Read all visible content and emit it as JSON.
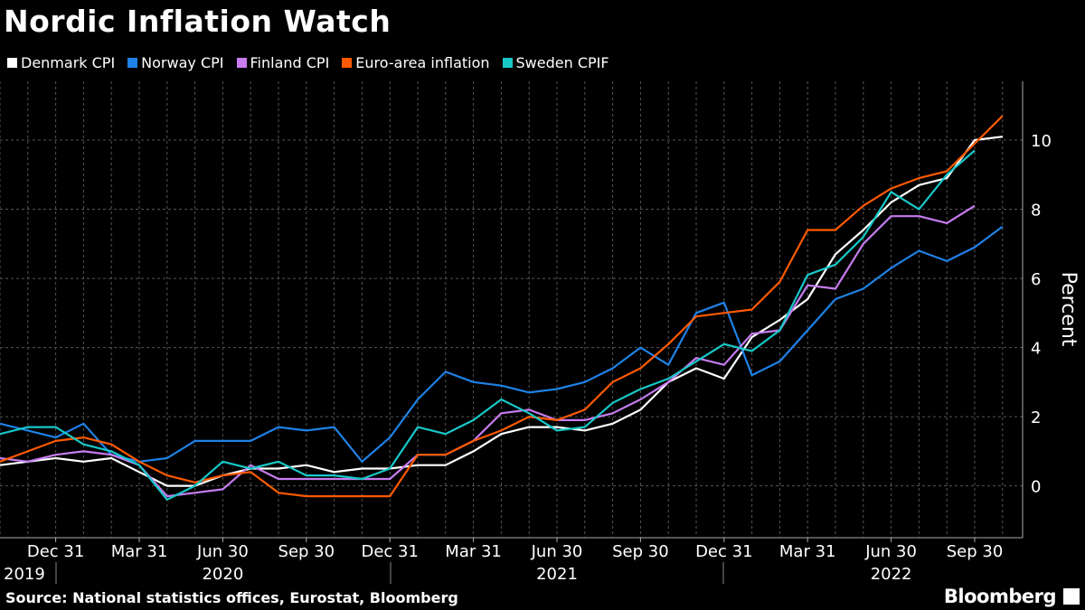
{
  "chart_data": {
    "type": "line",
    "title": "Nordic Inflation Watch",
    "ylabel": "Percent",
    "xlabel": "",
    "ylim": [
      -1.5,
      11.7
    ],
    "yticks": [
      0,
      2,
      4,
      6,
      8,
      10
    ],
    "grid": true,
    "legend_placement": "top-left",
    "x": [
      "2019-10",
      "2019-11",
      "2019-12",
      "2020-01",
      "2020-02",
      "2020-03",
      "2020-04",
      "2020-05",
      "2020-06",
      "2020-07",
      "2020-08",
      "2020-09",
      "2020-10",
      "2020-11",
      "2020-12",
      "2021-01",
      "2021-02",
      "2021-03",
      "2021-04",
      "2021-05",
      "2021-06",
      "2021-07",
      "2021-08",
      "2021-09",
      "2021-10",
      "2021-11",
      "2021-12",
      "2022-01",
      "2022-02",
      "2022-03",
      "2022-04",
      "2022-05",
      "2022-06",
      "2022-07",
      "2022-08",
      "2022-09",
      "2022-10"
    ],
    "xtick_labels": [
      {
        "label": "Dec 31",
        "month": 2
      },
      {
        "label": "Mar 31",
        "month": 5
      },
      {
        "label": "Jun 30",
        "month": 8
      },
      {
        "label": "Sep 30",
        "month": 11
      },
      {
        "label": "Dec 31",
        "month": 14
      },
      {
        "label": "Mar 31",
        "month": 17
      },
      {
        "label": "Jun 30",
        "month": 20
      },
      {
        "label": "Sep 30",
        "month": 23
      },
      {
        "label": "Dec 31",
        "month": 26
      },
      {
        "label": "Mar 31",
        "month": 29
      },
      {
        "label": "Jun 30",
        "month": 32
      },
      {
        "label": "Sep 30",
        "month": 35
      }
    ],
    "year_labels": [
      "2019",
      "2020",
      "2021",
      "2022"
    ],
    "series": [
      {
        "name": "Denmark CPI",
        "color": "#ffffff",
        "values": [
          0.6,
          0.7,
          0.8,
          0.7,
          0.8,
          0.4,
          0.0,
          0.0,
          0.3,
          0.5,
          0.5,
          0.6,
          0.4,
          0.5,
          0.5,
          0.6,
          0.6,
          1.0,
          1.5,
          1.7,
          1.7,
          1.6,
          1.8,
          2.2,
          3.0,
          3.4,
          3.1,
          4.3,
          4.8,
          5.4,
          6.7,
          7.4,
          8.2,
          8.7,
          8.9,
          10.0,
          10.1
        ]
      },
      {
        "name": "Norway CPI",
        "color": "#1f82e6",
        "values": [
          1.8,
          1.6,
          1.4,
          1.8,
          0.9,
          0.7,
          0.8,
          1.3,
          1.3,
          1.3,
          1.7,
          1.6,
          1.7,
          0.7,
          1.4,
          2.5,
          3.3,
          3.0,
          2.9,
          2.7,
          2.8,
          3.0,
          3.4,
          4.0,
          3.5,
          5.0,
          5.3,
          3.2,
          3.6,
          4.5,
          5.4,
          5.7,
          6.3,
          6.8,
          6.5,
          6.9,
          7.5
        ]
      },
      {
        "name": "Finland CPI",
        "color": "#c77cf0",
        "values": [
          0.8,
          0.7,
          0.9,
          1.0,
          0.9,
          0.6,
          -0.3,
          -0.2,
          -0.1,
          0.6,
          0.2,
          0.2,
          0.2,
          0.2,
          0.2,
          0.9,
          0.9,
          1.3,
          2.1,
          2.2,
          1.9,
          1.9,
          2.1,
          2.5,
          3.0,
          3.7,
          3.5,
          4.4,
          4.5,
          5.8,
          5.7,
          7.0,
          7.8,
          7.8,
          7.6,
          8.1,
          null
        ]
      },
      {
        "name": "Euro-area inflation",
        "color": "#ff5a00",
        "values": [
          0.7,
          1.0,
          1.3,
          1.4,
          1.2,
          0.7,
          0.3,
          0.1,
          0.3,
          0.4,
          -0.2,
          -0.3,
          -0.3,
          -0.3,
          -0.3,
          0.9,
          0.9,
          1.3,
          1.6,
          2.0,
          1.9,
          2.2,
          3.0,
          3.4,
          4.1,
          4.9,
          5.0,
          5.1,
          5.9,
          7.4,
          7.4,
          8.1,
          8.6,
          8.9,
          9.1,
          9.9,
          10.7
        ]
      },
      {
        "name": "Sweden CPIF",
        "color": "#18c8c8",
        "values": [
          1.5,
          1.7,
          1.7,
          1.2,
          1.0,
          0.6,
          -0.4,
          0.0,
          0.7,
          0.5,
          0.7,
          0.3,
          0.3,
          0.2,
          0.5,
          1.7,
          1.5,
          1.9,
          2.5,
          2.1,
          1.6,
          1.7,
          2.4,
          2.8,
          3.1,
          3.6,
          4.1,
          3.9,
          4.5,
          6.1,
          6.4,
          7.2,
          8.5,
          8.0,
          9.0,
          9.7,
          null
        ]
      }
    ]
  },
  "footer": {
    "source": "Source: National statistics offices, Eurostat, Bloomberg",
    "brand": "Bloomberg"
  }
}
